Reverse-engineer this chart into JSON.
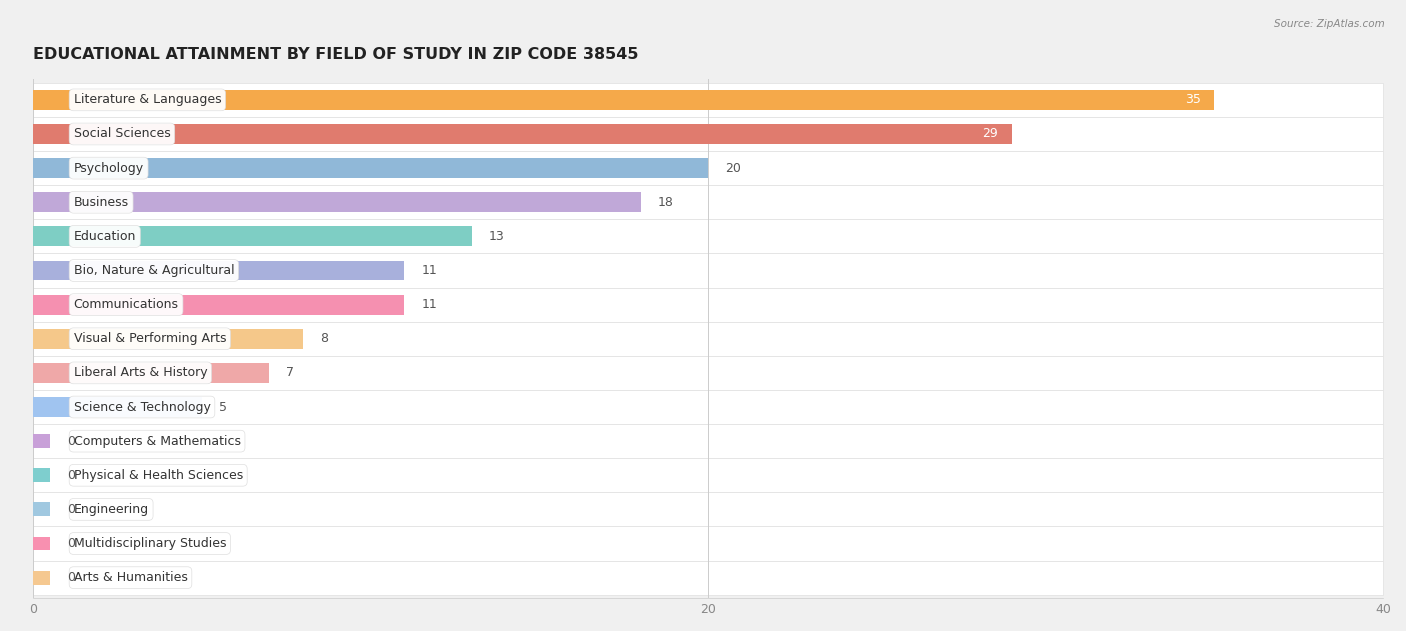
{
  "title": "EDUCATIONAL ATTAINMENT BY FIELD OF STUDY IN ZIP CODE 38545",
  "source": "Source: ZipAtlas.com",
  "categories": [
    "Literature & Languages",
    "Social Sciences",
    "Psychology",
    "Business",
    "Education",
    "Bio, Nature & Agricultural",
    "Communications",
    "Visual & Performing Arts",
    "Liberal Arts & History",
    "Science & Technology",
    "Computers & Mathematics",
    "Physical & Health Sciences",
    "Engineering",
    "Multidisciplinary Studies",
    "Arts & Humanities"
  ],
  "values": [
    35,
    29,
    20,
    18,
    13,
    11,
    11,
    8,
    7,
    5,
    0,
    0,
    0,
    0,
    0
  ],
  "bar_colors": [
    "#F5A94A",
    "#E07B6E",
    "#90B8D8",
    "#C0A8D8",
    "#7ECEC4",
    "#A8B0DC",
    "#F590B0",
    "#F5C88A",
    "#EFA8A8",
    "#A0C4F0",
    "#C8A0D8",
    "#7ECECE",
    "#A0C8E0",
    "#F890B0",
    "#F5C890"
  ],
  "xlim": [
    0,
    40
  ],
  "xticks": [
    0,
    20,
    40
  ],
  "bg_color": "#f0f0f0",
  "row_bg_color": "#ffffff",
  "row_alt_color": "#f7f7f7",
  "title_fontsize": 11.5,
  "label_fontsize": 9.0,
  "value_fontsize": 9.0,
  "bar_height": 0.58
}
